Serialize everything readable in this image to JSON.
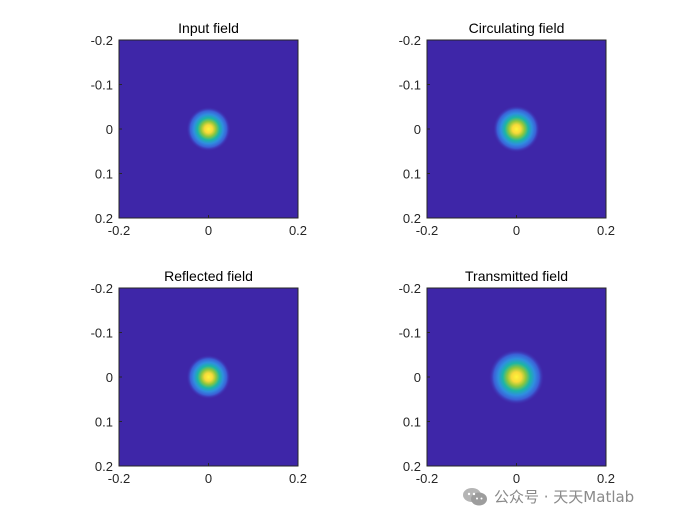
{
  "chart_data": [
    {
      "type": "heatmap",
      "title": "Input field",
      "x_ticks": [
        "-0.2",
        "0",
        "0.2"
      ],
      "y_ticks": [
        "-0.2",
        "-0.1",
        "0",
        "0.1",
        "0.2"
      ],
      "xlim": [
        -0.2,
        0.2
      ],
      "ylim": [
        -0.2,
        0.2
      ],
      "y_direction": "reversed",
      "center": [
        0,
        0
      ],
      "beam_radius": 0.032,
      "colormap": "parula",
      "grid": false
    },
    {
      "type": "heatmap",
      "title": "Circulating field",
      "x_ticks": [
        "-0.2",
        "0",
        "0.2"
      ],
      "y_ticks": [
        "-0.2",
        "-0.1",
        "0",
        "0.1",
        "0.2"
      ],
      "xlim": [
        -0.2,
        0.2
      ],
      "ylim": [
        -0.2,
        0.2
      ],
      "y_direction": "reversed",
      "center": [
        0,
        0
      ],
      "beam_radius": 0.034,
      "colormap": "parula",
      "grid": false
    },
    {
      "type": "heatmap",
      "title": "Reflected field",
      "x_ticks": [
        "-0.2",
        "0",
        "0.2"
      ],
      "y_ticks": [
        "-0.2",
        "-0.1",
        "0",
        "0.1",
        "0.2"
      ],
      "xlim": [
        -0.2,
        0.2
      ],
      "ylim": [
        -0.2,
        0.2
      ],
      "y_direction": "reversed",
      "center": [
        0,
        0
      ],
      "beam_radius": 0.032,
      "colormap": "parula",
      "grid": false
    },
    {
      "type": "heatmap",
      "title": "Transmitted field",
      "x_ticks": [
        "-0.2",
        "0",
        "0.2"
      ],
      "y_ticks": [
        "-0.2",
        "-0.1",
        "0",
        "0.1",
        "0.2"
      ],
      "xlim": [
        -0.2,
        0.2
      ],
      "ylim": [
        -0.2,
        0.2
      ],
      "y_direction": "reversed",
      "center": [
        0,
        0
      ],
      "beam_radius": 0.04,
      "colormap": "parula",
      "grid": false
    }
  ],
  "colors": {
    "background_low": "#3e26a8",
    "mid_blue": "#2f8fe0",
    "teal": "#1cb5a5",
    "green": "#8cc63e",
    "peak_yellow": "#fff53a",
    "axis": "#262626"
  },
  "watermark": {
    "text": "公众号 · 天天Matlab",
    "icon": "wechat-icon"
  }
}
